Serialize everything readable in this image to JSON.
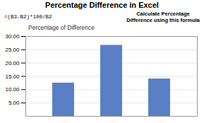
{
  "chart_data": {
    "type": "bar",
    "title": "Percentage Difference in Excel",
    "subtitle": "Percentage of Difference",
    "categories": [
      null,
      null,
      null
    ],
    "values": [
      12.5,
      26.67,
      14.04
    ],
    "color": "#5b7fc4",
    "ylim": [
      0,
      30
    ],
    "yticks": [
      {
        "value": 5,
        "label": "5.00"
      },
      {
        "value": 10,
        "label": "10.00"
      },
      {
        "value": 15,
        "label": "15.00"
      },
      {
        "value": 20,
        "label": "20.00"
      },
      {
        "value": 25,
        "label": "25.00"
      },
      {
        "value": 30,
        "label": "30.00"
      }
    ],
    "grid": true,
    "tick_labels": "y",
    "annotations": [
      "=(B3-B2)*100/B2",
      "Calculate Percentage\nDifference using this formula"
    ]
  }
}
